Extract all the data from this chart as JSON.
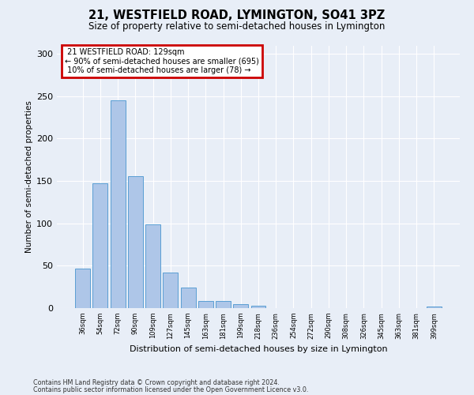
{
  "title": "21, WESTFIELD ROAD, LYMINGTON, SO41 3PZ",
  "subtitle": "Size of property relative to semi-detached houses in Lymington",
  "xlabel": "Distribution of semi-detached houses by size in Lymington",
  "ylabel": "Number of semi-detached properties",
  "property_label": "21 WESTFIELD ROAD: 129sqm",
  "pct_smaller": 90,
  "pct_smaller_count": 695,
  "pct_larger": 10,
  "pct_larger_count": 78,
  "bin_labels": [
    "36sqm",
    "54sqm",
    "72sqm",
    "90sqm",
    "109sqm",
    "127sqm",
    "145sqm",
    "163sqm",
    "181sqm",
    "199sqm",
    "218sqm",
    "236sqm",
    "254sqm",
    "272sqm",
    "290sqm",
    "308sqm",
    "326sqm",
    "345sqm",
    "363sqm",
    "381sqm",
    "399sqm"
  ],
  "bar_values": [
    47,
    147,
    245,
    156,
    99,
    42,
    24,
    8,
    8,
    5,
    3,
    0,
    0,
    0,
    0,
    0,
    0,
    0,
    0,
    0,
    2
  ],
  "bar_color": "#aec6e8",
  "bar_edge_color": "#5a9fd4",
  "bg_color": "#e8eef7",
  "annotation_box_color": "#cc0000",
  "grid_color": "#ffffff",
  "ylim": [
    0,
    310
  ],
  "yticks": [
    0,
    50,
    100,
    150,
    200,
    250,
    300
  ],
  "footer_line1": "Contains HM Land Registry data © Crown copyright and database right 2024.",
  "footer_line2": "Contains public sector information licensed under the Open Government Licence v3.0."
}
